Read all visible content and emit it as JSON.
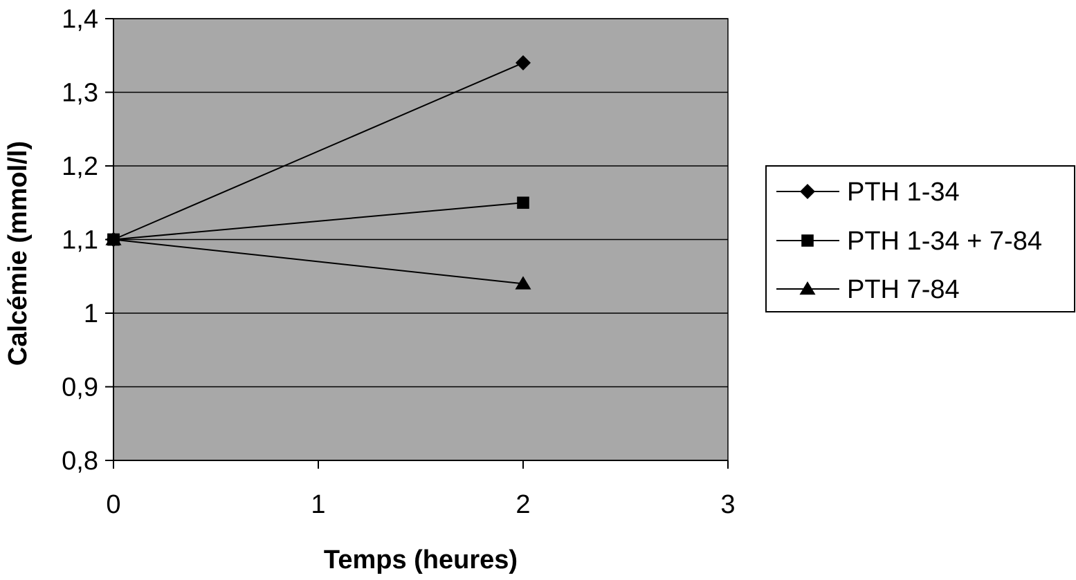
{
  "chart_data": {
    "type": "line",
    "title": "",
    "xlabel": "Temps (heures)",
    "ylabel": "Calcémie (mmol/l)",
    "xlim": [
      0,
      3
    ],
    "ylim": [
      0.8,
      1.4
    ],
    "x_ticks": [
      0,
      1,
      2,
      3
    ],
    "x_tick_labels": [
      "0",
      "1",
      "2",
      "3"
    ],
    "y_ticks": [
      0.8,
      0.9,
      1.0,
      1.1,
      1.2,
      1.3,
      1.4
    ],
    "y_tick_labels": [
      "0,8",
      "0,9",
      "1",
      "1,1",
      "1,2",
      "1,3",
      "1,4"
    ],
    "grid": "horizontal",
    "legend_position": "right",
    "plot_background": "#a8a8a8",
    "series": [
      {
        "name": "PTH 1-34",
        "marker": "diamond",
        "color": "#000000",
        "x": [
          0,
          2
        ],
        "y": [
          1.1,
          1.34
        ]
      },
      {
        "name": "PTH 1-34 + 7-84",
        "marker": "square",
        "color": "#000000",
        "x": [
          0,
          2
        ],
        "y": [
          1.1,
          1.15
        ]
      },
      {
        "name": "PTH 7-84",
        "marker": "triangle",
        "color": "#000000",
        "x": [
          0,
          2
        ],
        "y": [
          1.1,
          1.04
        ]
      }
    ]
  }
}
